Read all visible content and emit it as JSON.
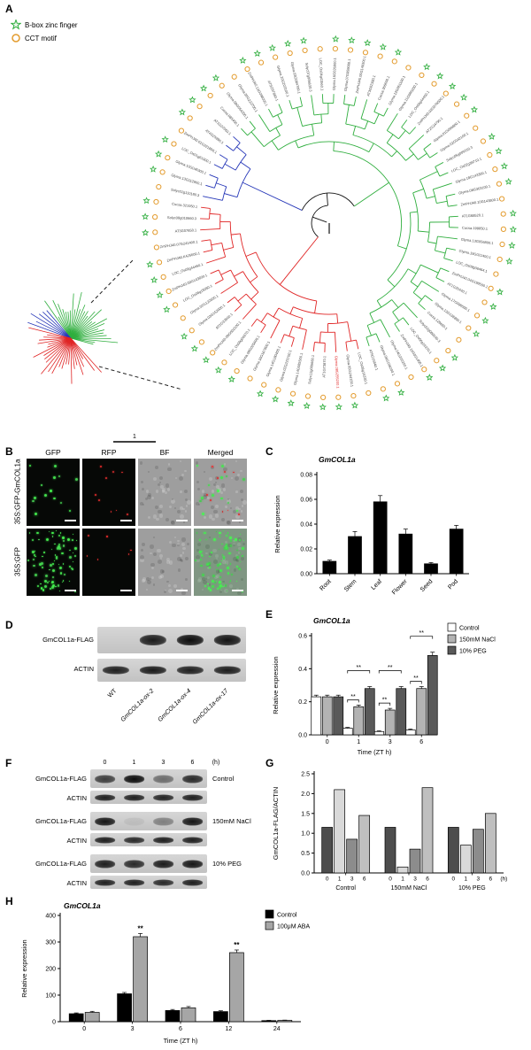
{
  "panels": {
    "A": {
      "label": "A",
      "legend": [
        {
          "icon": "star",
          "label": "B-box zinc finger"
        },
        {
          "icon": "circle",
          "label": "CCT motif"
        }
      ],
      "scale_label": "1",
      "tree": {
        "clade_colors": {
          "green": "#2fae3e",
          "blue": "#2637b8",
          "red": "#e02424"
        },
        "marker_colors": {
          "star": "#2fae3e",
          "circle": "#e39b2d"
        },
        "taxa": [
          {
            "label": "AT5G15840.1",
            "clade": "green",
            "star": true
          },
          {
            "label": "Glyma.06G196200.1",
            "clade": "green",
            "star": true
          },
          {
            "label": "Glyma.04G200200.1",
            "clade": "green",
            "star": false
          },
          {
            "label": "ZmPHJ40.16G031400.1",
            "clade": "green",
            "star": true
          },
          {
            "label": "LOC_Os06g16370.1",
            "clade": "green",
            "star": true
          },
          {
            "label": "Solyc02g089540.3",
            "clade": "green",
            "star": true
          },
          {
            "label": "Cucsa.129690.1",
            "clade": "green",
            "star": false
          },
          {
            "label": "Glyma.13G138800.1",
            "clade": "green",
            "star": true
          },
          {
            "label": "Glyma.17G090500.1",
            "clade": "green",
            "star": true
          },
          {
            "label": "AT1G25440.1",
            "clade": "green",
            "star": true
          },
          {
            "label": "ZmPHJ40.04G198500.1",
            "clade": "green",
            "star": true
          },
          {
            "label": "LOC_Os09g06464.1",
            "clade": "green",
            "star": false
          },
          {
            "label": "Glyma.19G021400.1",
            "clade": "green",
            "star": true
          },
          {
            "label": "Glyma.13G056800.1",
            "clade": "green",
            "star": true
          },
          {
            "label": "Cucsa.199850.1",
            "clade": "green",
            "star": true
          },
          {
            "label": "AT1G68520.1",
            "clade": "green",
            "star": true
          },
          {
            "label": "ZmPHJ40.10G143800.1",
            "clade": "green",
            "star": false
          },
          {
            "label": "Glyma.08G363100.1",
            "clade": "green",
            "star": true
          },
          {
            "label": "Glyma.18G143300.1",
            "clade": "green",
            "star": true
          },
          {
            "label": "LOC_Os02g39710.1",
            "clade": "green",
            "star": true
          },
          {
            "label": "Solyc05g009310.3",
            "clade": "green",
            "star": true
          },
          {
            "label": "Glyma.02G042100.1",
            "clade": "green",
            "star": false
          },
          {
            "label": "Glyma.01G096800.1",
            "clade": "green",
            "star": true
          },
          {
            "label": "AT2G24790.1",
            "clade": "green",
            "star": true
          },
          {
            "label": "ZmPHJ40.02G076500.1",
            "clade": "green",
            "star": true
          },
          {
            "label": "LOC_Os06g44450.1",
            "clade": "green",
            "star": true
          },
          {
            "label": "Glyma.11G095200.1",
            "clade": "green",
            "star": true
          },
          {
            "label": "Glyma.12G051100.1",
            "clade": "green",
            "star": false
          },
          {
            "label": "Cucsa.366650.1",
            "clade": "green",
            "star": true
          },
          {
            "label": "AT3G02380.1",
            "clade": "green",
            "star": true
          },
          {
            "label": "ZmPHJ40.05G146300.1",
            "clade": "green",
            "star": true
          },
          {
            "label": "Glyma.07G059000.1",
            "clade": "green",
            "star": true
          },
          {
            "label": "Glyma.16G026900.1",
            "clade": "green",
            "star": true
          },
          {
            "label": "LOC_Os04g41560.1",
            "clade": "green",
            "star": false
          },
          {
            "label": "Solyc07g006630.3",
            "clade": "green",
            "star": true
          },
          {
            "label": "Glyma.03G084700.1",
            "clade": "green",
            "star": true
          },
          {
            "label": "Glyma.20G203100.1",
            "clade": "green",
            "star": true
          },
          {
            "label": "AT5G57660.1",
            "clade": "green",
            "star": true
          },
          {
            "label": "ZmPHJ40.13G098000.1",
            "clade": "green",
            "star": true
          },
          {
            "label": "Glyma.05G222700.1",
            "clade": "green",
            "star": false
          },
          {
            "label": "Glyma.08G054200.1",
            "clade": "green",
            "star": true
          },
          {
            "label": "Cucsa.085450.1",
            "clade": "green",
            "star": true
          },
          {
            "label": "AT1G07050.1",
            "clade": "blue",
            "star": true
          },
          {
            "label": "AT4G25990.1",
            "clade": "blue",
            "star": true
          },
          {
            "label": "ZmPHJ40.01G221800.1",
            "clade": "blue",
            "star": false
          },
          {
            "label": "LOC_Os01g61900.1",
            "clade": "blue",
            "star": true
          },
          {
            "label": "Glyma.10G046300.1",
            "clade": "blue",
            "star": true
          },
          {
            "label": "Glyma.13G112900.1",
            "clade": "blue",
            "star": true
          },
          {
            "label": "Solyc01g110180.3",
            "clade": "blue",
            "star": false
          },
          {
            "label": "Cucsa.321050.1",
            "clade": "red",
            "star": true
          },
          {
            "label": "Solyc09g010660.3",
            "clade": "red",
            "star": true
          },
          {
            "label": "AT3G07650.1",
            "clade": "red",
            "star": true
          },
          {
            "label": "ZmPHJ40.07G241400.1",
            "clade": "red",
            "star": false
          },
          {
            "label": "ZmPHJ40.K425600.1",
            "clade": "red",
            "star": true
          },
          {
            "label": "LOC_Os09g44450.1",
            "clade": "red",
            "star": true
          },
          {
            "label": "ZmPHJ40.09G143600.1",
            "clade": "red",
            "star": true
          },
          {
            "label": "LOC_Os08g15050.1",
            "clade": "red",
            "star": true
          },
          {
            "label": "Glyma.02G122600.1",
            "clade": "red",
            "star": false
          },
          {
            "label": "Glyma.03G152900.1",
            "clade": "red",
            "star": true
          },
          {
            "label": "AT2G33500.1",
            "clade": "red",
            "star": true
          },
          {
            "label": "ZmPHJ40.09G002100.1",
            "clade": "red",
            "star": true
          },
          {
            "label": "LOC_Os09g06670.1",
            "clade": "red",
            "star": true
          },
          {
            "label": "Glyma.09G025600.1",
            "clade": "red",
            "star": true
          },
          {
            "label": "Glyma.16G167800.1",
            "clade": "red",
            "star": false
          },
          {
            "label": "Glyma.14G180400.1",
            "clade": "red",
            "star": true
          },
          {
            "label": "Glyma.02G223700.1",
            "clade": "red",
            "star": true
          },
          {
            "label": "Glyma.14G085500.1",
            "clade": "red",
            "star": true
          },
          {
            "label": "Solyc12g005660.1",
            "clade": "red",
            "star": true
          },
          {
            "label": "AT1G73870.1",
            "clade": "red",
            "star": true
          },
          {
            "label": "Glyma.08G255200.1",
            "clade": "red",
            "star": true,
            "hl": true
          },
          {
            "label": "Glyma.05G244100.1",
            "clade": "red",
            "star": true
          },
          {
            "label": "LOC_Os06g15330.1",
            "clade": "red",
            "star": false
          }
        ]
      }
    },
    "B": {
      "label": "B",
      "columns": [
        "GFP",
        "RFP",
        "BF",
        "Merged"
      ],
      "rows": [
        "35S:GFP-GmCOL1a",
        "35S:GFP"
      ]
    },
    "D": {
      "label": "D",
      "rows": [
        {
          "name": "GmCOL1a-FLAG",
          "bands": [
            0,
            0.92,
            1,
            0.96
          ]
        },
        {
          "name": "ACTIN",
          "bands": [
            0.9,
            0.93,
            0.9,
            0.92
          ]
        }
      ],
      "lanes": [
        "WT",
        "GmCOL1a-ox-2",
        "GmCOL1a-ox-4",
        "GmCOL1a-ox-17"
      ],
      "lane_italic": [
        false,
        true,
        true,
        true
      ]
    },
    "F": {
      "label": "F",
      "time_header": [
        "0",
        "1",
        "3",
        "6"
      ],
      "time_unit": "(h)",
      "row_labels": {
        "flag": "GmCOL1a-FLAG",
        "actin": "ACTIN"
      },
      "blocks": [
        {
          "condition": "Control",
          "flag_bands": [
            0.75,
            1,
            0.5,
            0.85
          ],
          "actin_bands": [
            0.9,
            0.9,
            0.88,
            0.9
          ]
        },
        {
          "condition": "150mM NaCl",
          "flag_bands": [
            0.95,
            0.08,
            0.4,
            0.95
          ],
          "actin_bands": [
            0.9,
            0.85,
            0.9,
            0.9
          ]
        },
        {
          "condition": "10% PEG",
          "flag_bands": [
            0.9,
            0.85,
            0.92,
            0.95
          ],
          "actin_bands": [
            0.9,
            0.9,
            0.85,
            0.9
          ]
        }
      ]
    }
  },
  "chart_data": [
    {
      "id": "C",
      "type": "bar",
      "title": "GmCOL1a",
      "ylabel": "Relative expression",
      "categories": [
        "Root",
        "Stem",
        "Leaf",
        "Flower",
        "Seed",
        "Pod"
      ],
      "series": [
        {
          "name": "",
          "color": "#000000",
          "values": [
            0.01,
            0.03,
            0.058,
            0.032,
            0.008,
            0.036
          ],
          "errors": [
            0.001,
            0.004,
            0.005,
            0.004,
            0.001,
            0.003
          ]
        }
      ],
      "ylim": [
        0,
        0.08
      ],
      "yticks": [
        0,
        0.02,
        0.04,
        0.06,
        0.08
      ],
      "ytick_labels": [
        "0.00",
        "0.02",
        "0.04",
        "0.06",
        "0.08"
      ]
    },
    {
      "id": "E",
      "type": "bar",
      "title": "GmCOL1a",
      "ylabel": "Relative expression",
      "xlabel": "Time (ZT h)",
      "categories": [
        "0",
        "1",
        "3",
        "6"
      ],
      "series": [
        {
          "name": "Control",
          "color": "#ffffff",
          "values": [
            0.23,
            0.04,
            0.02,
            0.03
          ],
          "errors": [
            0.01,
            0.005,
            0.004,
            0.005
          ]
        },
        {
          "name": "150mM NaCl",
          "color": "#b3b3b3",
          "values": [
            0.23,
            0.17,
            0.15,
            0.28
          ],
          "errors": [
            0.01,
            0.01,
            0.01,
            0.012
          ]
        },
        {
          "name": "10% PEG",
          "color": "#595959",
          "values": [
            0.23,
            0.28,
            0.28,
            0.48
          ],
          "errors": [
            0.01,
            0.012,
            0.012,
            0.02
          ]
        }
      ],
      "ylim": [
        0,
        0.6
      ],
      "yticks": [
        0,
        0.2,
        0.4,
        0.6
      ],
      "ytick_labels": [
        "0.0",
        "0.2",
        "0.4",
        "0.6"
      ],
      "sig": [
        {
          "cat": "1",
          "pairs": [
            {
              "a": 0,
              "b": 1,
              "label": "**"
            },
            {
              "a": 0,
              "b": 2,
              "label": "**"
            }
          ]
        },
        {
          "cat": "3",
          "pairs": [
            {
              "a": 0,
              "b": 1,
              "label": "**"
            },
            {
              "a": 0,
              "b": 2,
              "label": "**"
            }
          ]
        },
        {
          "cat": "6",
          "pairs": [
            {
              "a": 0,
              "b": 1,
              "label": "**"
            },
            {
              "a": 0,
              "b": 2,
              "label": "**"
            }
          ]
        }
      ]
    },
    {
      "id": "G",
      "type": "bar",
      "ylabel": "GmCOL1a-FLAG/ACTIN",
      "categories": [
        "Control",
        "150mM NaCl",
        "10% PEG"
      ],
      "time_unit": "(h)",
      "series": [
        {
          "name": "0",
          "color": "#4d4d4d",
          "values": [
            1.15,
            1.15,
            1.15
          ]
        },
        {
          "name": "1",
          "color": "#d9d9d9",
          "values": [
            2.1,
            0.15,
            0.7
          ]
        },
        {
          "name": "3",
          "color": "#8c8c8c",
          "values": [
            0.85,
            0.6,
            1.1
          ]
        },
        {
          "name": "6",
          "color": "#bfbfbf",
          "values": [
            1.45,
            2.15,
            1.5
          ]
        }
      ],
      "ylim": [
        0,
        2.5
      ],
      "yticks": [
        0,
        0.5,
        1.0,
        1.5,
        2.0,
        2.5
      ],
      "ytick_labels": [
        "0.0",
        "0.5",
        "1.0",
        "1.5",
        "2.0",
        "2.5"
      ]
    },
    {
      "id": "H",
      "type": "bar",
      "title": "GmCOL1a",
      "ylabel": "Relative expression",
      "xlabel": "Time (ZT h)",
      "categories": [
        "0",
        "3",
        "6",
        "12",
        "24"
      ],
      "series": [
        {
          "name": "Control",
          "color": "#000000",
          "values": [
            30,
            105,
            42,
            38,
            4
          ],
          "errors": [
            3,
            5,
            4,
            3,
            1
          ]
        },
        {
          "name": "100μM ABA",
          "color": "#a6a6a6",
          "values": [
            35,
            320,
            52,
            260,
            5
          ],
          "errors": [
            4,
            12,
            5,
            10,
            1
          ]
        }
      ],
      "ylim": [
        0,
        400
      ],
      "yticks": [
        0,
        100,
        200,
        300,
        400
      ],
      "ytick_labels": [
        "0",
        "100",
        "200",
        "300",
        "400"
      ],
      "sig": [
        {
          "cat": "3",
          "series": 1,
          "label": "**"
        },
        {
          "cat": "12",
          "series": 1,
          "label": "**"
        }
      ]
    }
  ]
}
